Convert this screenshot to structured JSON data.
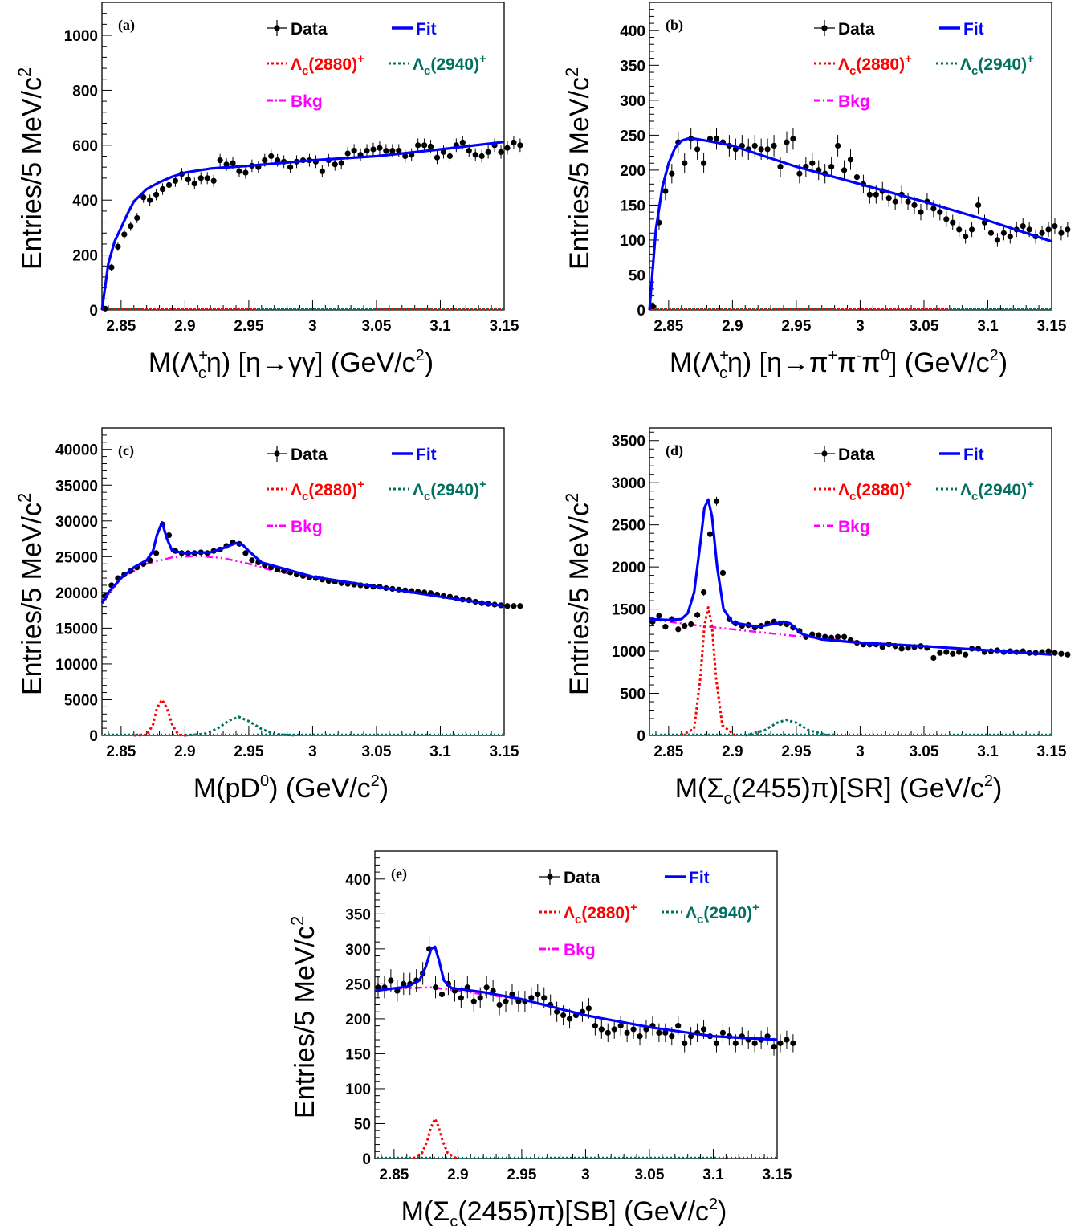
{
  "chart_data": [
    {
      "type": "scatter",
      "panel_label": "(a)",
      "xlabel": "M(Λc+η) [η→γγ] (GeV/c2)",
      "xlabel_parts": {
        "pre": "M(Λ",
        "sup": "+",
        "sub": "c",
        "post": "η) [η→γγ] (GeV/c",
        "sup2": "2",
        "end": ")"
      },
      "ylabel": "Entries/5 MeV/c2",
      "ylabel_parts": {
        "main": "Entries/5 MeV/c",
        "sup": "2"
      },
      "xlim": [
        2.835,
        3.15
      ],
      "ylim": [
        0,
        1120
      ],
      "xticks": [
        "2.85",
        "2.9",
        "2.95",
        "3",
        "3.05",
        "3.1",
        "3.15"
      ],
      "yticks": [
        "0",
        "200",
        "400",
        "600",
        "800",
        "1000"
      ],
      "legend": {
        "data": "Data",
        "fit": "Fit",
        "comp1": "Λc(2880)+",
        "comp2": "Λc(2940)+",
        "bkg": "Bkg"
      },
      "data_points": {
        "x_start": 2.8375,
        "x_step": 0.005,
        "y": [
          5,
          155,
          230,
          275,
          305,
          335,
          410,
          400,
          420,
          440,
          455,
          470,
          495,
          475,
          460,
          480,
          480,
          470,
          545,
          530,
          535,
          505,
          500,
          525,
          520,
          545,
          560,
          545,
          540,
          520,
          540,
          545,
          545,
          540,
          505,
          545,
          530,
          535,
          570,
          580,
          565,
          580,
          585,
          590,
          580,
          580,
          580,
          560,
          565,
          600,
          600,
          595,
          555,
          575,
          560,
          600,
          610,
          580,
          565,
          560,
          575,
          600,
          575,
          590,
          610,
          600
        ]
      },
      "fit": {
        "x": [
          2.835,
          2.84,
          2.845,
          2.85,
          2.855,
          2.86,
          2.87,
          2.88,
          2.89,
          2.9,
          2.92,
          2.95,
          3.0,
          3.05,
          3.1,
          3.15
        ],
        "y": [
          0,
          170,
          250,
          300,
          350,
          395,
          440,
          465,
          485,
          500,
          515,
          525,
          545,
          560,
          585,
          612
        ]
      },
      "colors": {
        "data": "#000000",
        "fit": "#0000ff",
        "comp1": "#ff0000",
        "comp2": "#007060",
        "bkg": "#ff00ff"
      }
    },
    {
      "type": "scatter",
      "panel_label": "(b)",
      "xlabel": "M(Λc+η) [η→π+π-π0]  (GeV/c2)",
      "xlabel_parts": {
        "pre": "M(Λ",
        "sup": "+",
        "sub": "c",
        "post": "η) [η→π",
        "s1": "+",
        "m1": "π",
        "s2": "-",
        "m2": "π",
        "s3": "0",
        "post2": "]  (GeV/c",
        "sup2": "2",
        "end": ")"
      },
      "ylabel": "Entries/5 MeV/c2",
      "ylabel_parts": {
        "main": "Entries/5 MeV/c",
        "sup": "2"
      },
      "xlim": [
        2.835,
        3.15
      ],
      "ylim": [
        0,
        440
      ],
      "xticks": [
        "2.85",
        "2.9",
        "2.95",
        "3",
        "3.05",
        "3.1",
        "3.15"
      ],
      "yticks": [
        "0",
        "50",
        "100",
        "150",
        "200",
        "250",
        "300",
        "350",
        "400"
      ],
      "legend": {
        "data": "Data",
        "fit": "Fit",
        "comp1": "Λc(2880)+",
        "comp2": "Λc(2940)+",
        "bkg": "Bkg"
      },
      "data_points": {
        "x_start": 2.8375,
        "x_step": 0.005,
        "y": [
          5,
          125,
          170,
          195,
          240,
          210,
          245,
          230,
          210,
          245,
          245,
          240,
          235,
          230,
          235,
          230,
          235,
          230,
          230,
          235,
          205,
          240,
          245,
          195,
          205,
          210,
          200,
          195,
          205,
          235,
          200,
          215,
          190,
          180,
          165,
          165,
          170,
          160,
          155,
          165,
          155,
          150,
          140,
          155,
          145,
          140,
          130,
          125,
          115,
          105,
          115,
          150,
          125,
          110,
          100,
          110,
          105,
          115,
          120,
          115,
          105,
          110,
          115,
          120,
          110,
          115
        ]
      },
      "fit": {
        "x": [
          2.835,
          2.84,
          2.845,
          2.85,
          2.855,
          2.86,
          2.865,
          2.87,
          2.88,
          2.9,
          2.95,
          3.0,
          3.05,
          3.1,
          3.15
        ],
        "y": [
          0,
          115,
          175,
          210,
          232,
          242,
          245,
          245,
          242,
          235,
          205,
          180,
          155,
          128,
          98
        ]
      },
      "colors": {
        "data": "#000000",
        "fit": "#0000ff",
        "comp1": "#ff0000",
        "comp2": "#007060",
        "bkg": "#ff00ff"
      }
    },
    {
      "type": "scatter",
      "panel_label": "(c)",
      "xlabel": "M(pD0) (GeV/c2)",
      "xlabel_parts": {
        "pre": "M(pD",
        "sup": "0",
        "post": ") (GeV/c",
        "sup2": "2",
        "end": ")"
      },
      "ylabel": "Entries/5 MeV/c2",
      "ylabel_parts": {
        "main": "Entries/5 MeV/c",
        "sup": "2"
      },
      "xlim": [
        2.835,
        3.15
      ],
      "ylim": [
        0,
        43000
      ],
      "xticks": [
        "2.85",
        "2.9",
        "2.95",
        "3",
        "3.05",
        "3.1",
        "3.15"
      ],
      "yticks": [
        "0",
        "5000",
        "10000",
        "15000",
        "20000",
        "25000",
        "30000",
        "35000",
        "40000"
      ],
      "legend": {
        "data": "Data",
        "fit": "Fit",
        "comp1": "Λc(2880)+",
        "comp2": "Λc(2940)+",
        "bkg": "Bkg"
      },
      "data_points": {
        "x_start": 2.8375,
        "x_step": 0.005,
        "y": [
          19500,
          21000,
          22000,
          22500,
          23000,
          23500,
          24000,
          24500,
          25500,
          29500,
          28000,
          25800,
          25500,
          25500,
          25500,
          25600,
          25500,
          25800,
          26000,
          26500,
          27000,
          26800,
          25500,
          24500,
          24200,
          23800,
          23500,
          23200,
          23000,
          22800,
          22500,
          22300,
          22100,
          22000,
          21800,
          21600,
          21500,
          21300,
          21200,
          21100,
          21000,
          20900,
          20800,
          20800,
          20600,
          20500,
          20400,
          20300,
          20200,
          20100,
          20000,
          19900,
          19700,
          19500,
          19400,
          19200,
          19000,
          18900,
          18700,
          18500,
          18400,
          18300,
          18200,
          18100,
          18100,
          18100
        ]
      },
      "fit": {
        "x": [
          2.835,
          2.84,
          2.85,
          2.86,
          2.87,
          2.875,
          2.878,
          2.882,
          2.886,
          2.89,
          2.9,
          2.92,
          2.93,
          2.94,
          2.945,
          2.95,
          2.96,
          3.0,
          3.05,
          3.1,
          3.15
        ],
        "y": [
          18500,
          20000,
          22000,
          23500,
          24500,
          25800,
          28000,
          29800,
          27500,
          25800,
          25500,
          25600,
          26200,
          26900,
          26700,
          25800,
          24200,
          22200,
          20800,
          19400,
          18100
        ]
      },
      "bkg": {
        "x": [
          2.835,
          2.85,
          2.87,
          2.89,
          2.91,
          2.93,
          2.95,
          2.97,
          3.0,
          3.05,
          3.1,
          3.15
        ],
        "y": [
          18500,
          22000,
          24000,
          24900,
          25100,
          24800,
          24000,
          23000,
          22100,
          20800,
          19400,
          18100
        ]
      },
      "comp1": {
        "x": [
          2.86,
          2.87,
          2.875,
          2.878,
          2.882,
          2.886,
          2.89,
          2.895,
          2.9
        ],
        "y": [
          0,
          60,
          1500,
          3800,
          5000,
          3800,
          1500,
          60,
          0
        ]
      },
      "comp2": {
        "x": [
          2.9,
          2.915,
          2.925,
          2.935,
          2.942,
          2.95,
          2.96,
          2.97,
          2.985
        ],
        "y": [
          0,
          200,
          900,
          2100,
          2600,
          2000,
          900,
          200,
          0
        ]
      },
      "colors": {
        "data": "#000000",
        "fit": "#0000ff",
        "comp1": "#ff0000",
        "comp2": "#007060",
        "bkg": "#ff00ff"
      }
    },
    {
      "type": "scatter",
      "panel_label": "(d)",
      "xlabel": "M(Σc(2455)π)[SR] (GeV/c2)",
      "xlabel_parts": {
        "pre": "M(Σ",
        "sub": "c",
        "post": "(2455)π)[SR] (GeV/c",
        "sup2": "2",
        "end": ")"
      },
      "ylabel": "Entries/5 MeV/c2",
      "ylabel_parts": {
        "main": "Entries/5 MeV/c",
        "sup": "2"
      },
      "xlim": [
        2.835,
        3.15
      ],
      "ylim": [
        0,
        3650
      ],
      "xticks": [
        "2.85",
        "2.9",
        "2.95",
        "3",
        "3.05",
        "3.1",
        "3.15"
      ],
      "yticks": [
        "0",
        "500",
        "1000",
        "1500",
        "2000",
        "2500",
        "3000",
        "3500"
      ],
      "legend": {
        "data": "Data",
        "fit": "Fit",
        "comp1": "Λc(2880)+",
        "comp2": "Λc(2940)+",
        "bkg": "Bkg"
      },
      "data_points": {
        "x_start": 2.8375,
        "x_step": 0.005,
        "y": [
          1350,
          1420,
          1290,
          1380,
          1260,
          1300,
          1320,
          1430,
          1700,
          2390,
          2780,
          1930,
          1380,
          1330,
          1300,
          1310,
          1280,
          1300,
          1330,
          1350,
          1330,
          1320,
          1280,
          1240,
          1170,
          1200,
          1190,
          1170,
          1160,
          1170,
          1170,
          1130,
          1100,
          1080,
          1080,
          1080,
          1050,
          1080,
          1060,
          1030,
          1040,
          1050,
          1060,
          1040,
          920,
          980,
          990,
          970,
          990,
          960,
          1030,
          1030,
          990,
          1000,
          1010,
          990,
          1000,
          990,
          1000,
          980,
          980,
          990,
          1000,
          980,
          970,
          960
        ]
      },
      "fit": {
        "x": [
          2.835,
          2.85,
          2.86,
          2.865,
          2.87,
          2.875,
          2.878,
          2.881,
          2.884,
          2.888,
          2.893,
          2.9,
          2.92,
          2.935,
          2.94,
          2.945,
          2.955,
          2.97,
          3.0,
          3.05,
          3.1,
          3.15
        ],
        "y": [
          1380,
          1370,
          1380,
          1450,
          1700,
          2300,
          2700,
          2800,
          2600,
          2000,
          1500,
          1340,
          1290,
          1330,
          1350,
          1330,
          1200,
          1140,
          1100,
          1060,
          1010,
          960
        ]
      },
      "bkg": {
        "x": [
          2.835,
          2.87,
          2.9,
          2.95,
          3.0,
          3.05,
          3.1,
          3.15
        ],
        "y": [
          1380,
          1310,
          1260,
          1180,
          1110,
          1060,
          1010,
          960
        ]
      },
      "comp1": {
        "x": [
          2.86,
          2.87,
          2.875,
          2.878,
          2.881,
          2.884,
          2.887,
          2.892,
          2.902
        ],
        "y": [
          0,
          80,
          700,
          1300,
          1520,
          1300,
          700,
          120,
          0
        ]
      },
      "comp2": {
        "x": [
          2.91,
          2.925,
          2.935,
          2.942,
          2.95,
          2.96,
          2.975
        ],
        "y": [
          0,
          60,
          150,
          185,
          150,
          60,
          0
        ]
      },
      "colors": {
        "data": "#000000",
        "fit": "#0000ff",
        "comp1": "#ff0000",
        "comp2": "#007060",
        "bkg": "#ff00ff"
      }
    },
    {
      "type": "scatter",
      "panel_label": "(e)",
      "xlabel": "M(Σc(2455)π)[SB] (GeV/c2)",
      "xlabel_parts": {
        "pre": "M(Σ",
        "sub": "c",
        "post": "(2455)π)[SB] (GeV/c",
        "sup2": "2",
        "end": ")"
      },
      "ylabel": "Entries/5 MeV/c2",
      "ylabel_parts": {
        "main": "Entries/5 MeV/c",
        "sup": "2"
      },
      "xlim": [
        2.835,
        3.15
      ],
      "ylim": [
        0,
        440
      ],
      "xticks": [
        "2.85",
        "2.9",
        "2.95",
        "3",
        "3.05",
        "3.1",
        "3.15"
      ],
      "yticks": [
        "0",
        "50",
        "100",
        "150",
        "200",
        "250",
        "300",
        "350",
        "400"
      ],
      "legend": {
        "data": "Data",
        "fit": "Fit",
        "comp1": "Λc(2880)+",
        "comp2": "Λc(2940)+",
        "bkg": "Bkg"
      },
      "data_points": {
        "x_start": 2.8375,
        "x_step": 0.005,
        "y": [
          245,
          245,
          255,
          240,
          250,
          250,
          255,
          265,
          300,
          245,
          235,
          250,
          240,
          230,
          245,
          225,
          230,
          245,
          240,
          220,
          225,
          235,
          225,
          225,
          230,
          235,
          230,
          220,
          210,
          205,
          200,
          205,
          210,
          215,
          190,
          185,
          180,
          185,
          190,
          180,
          185,
          175,
          185,
          190,
          180,
          180,
          175,
          190,
          165,
          175,
          180,
          185,
          175,
          165,
          180,
          175,
          165,
          175,
          170,
          165,
          170,
          175,
          160,
          165,
          170,
          165
        ]
      },
      "fit": {
        "x": [
          2.835,
          2.86,
          2.87,
          2.875,
          2.879,
          2.882,
          2.885,
          2.889,
          2.895,
          2.92,
          2.95,
          3.0,
          3.05,
          3.1,
          3.15
        ],
        "y": [
          240,
          246,
          255,
          275,
          300,
          303,
          285,
          255,
          244,
          238,
          228,
          205,
          188,
          175,
          170
        ]
      },
      "bkg": {
        "x": [
          2.835,
          2.86,
          2.88,
          2.9,
          2.95,
          3.0,
          3.05,
          3.1,
          3.15
        ],
        "y": [
          240,
          244,
          245,
          240,
          228,
          205,
          188,
          175,
          170
        ]
      },
      "comp1": {
        "x": [
          2.865,
          2.872,
          2.876,
          2.879,
          2.882,
          2.885,
          2.888,
          2.892,
          2.899
        ],
        "y": [
          0,
          8,
          25,
          45,
          57,
          45,
          25,
          8,
          0
        ]
      },
      "colors": {
        "data": "#000000",
        "fit": "#0000ff",
        "comp1": "#ff0000",
        "comp2": "#007060",
        "bkg": "#ff00ff"
      }
    }
  ]
}
